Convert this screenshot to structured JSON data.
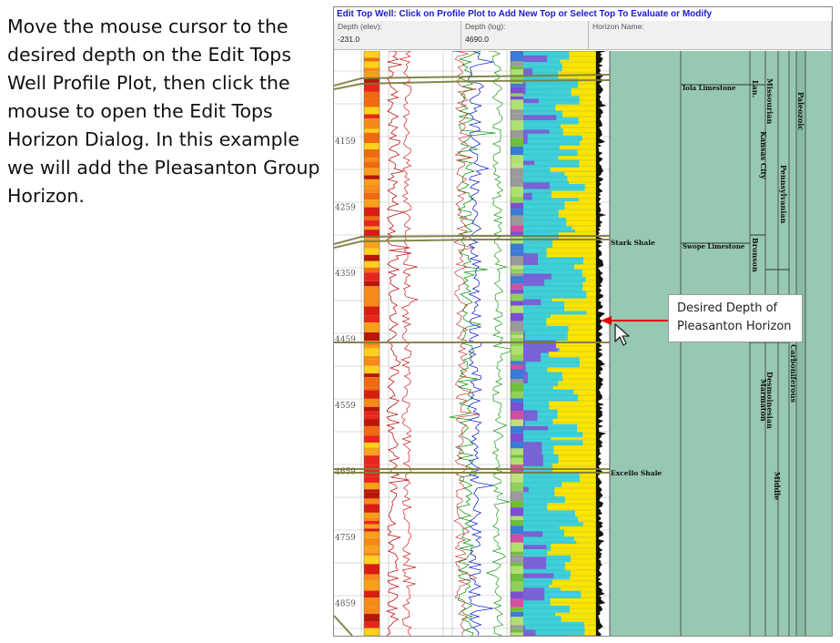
{
  "instruction": "Move the mouse cursor to the desired depth on the Edit Tops Well Profile Plot, then click the mouse to open the Edit Tops Horizon Dialog. In this example we will add the Pleasanton Group Horizon.",
  "window": {
    "title": "Edit Top Well: Click on Profile Plot to Add New Top or Select Top To Evaluate or Modify",
    "fields": [
      {
        "label": "Depth (elev):",
        "value": "-231.0"
      },
      {
        "label": "Depth (log):",
        "value": "4690.0"
      },
      {
        "label": "Horizon Name:",
        "value": ""
      }
    ]
  },
  "plot": {
    "depth_ticks": [
      "4159",
      "4259",
      "4359",
      "4459",
      "4559",
      "4659",
      "4759",
      "4859"
    ],
    "tops": [
      "Stark Shale",
      "Excello Shale"
    ],
    "formations": [
      "Iola Limestone",
      "Swope Limestone"
    ],
    "groups": [
      "Lan.",
      "Kansas City",
      "Bronson",
      "Marmaton"
    ],
    "stages": [
      "Missourian",
      "Desmoinesian"
    ],
    "series": [
      "Pennsylvanian",
      "Middle"
    ],
    "systems": [
      "Carboniferous"
    ],
    "erathems": [
      "Paleozoic"
    ]
  },
  "callout": {
    "text": "Desired Depth of Pleasanton Horizon"
  },
  "colors": {
    "title_blue": "#1a1acd",
    "panel_green": "#96c8b2",
    "pointer_red": "#e00000",
    "top_line": "#7a7a3a"
  }
}
